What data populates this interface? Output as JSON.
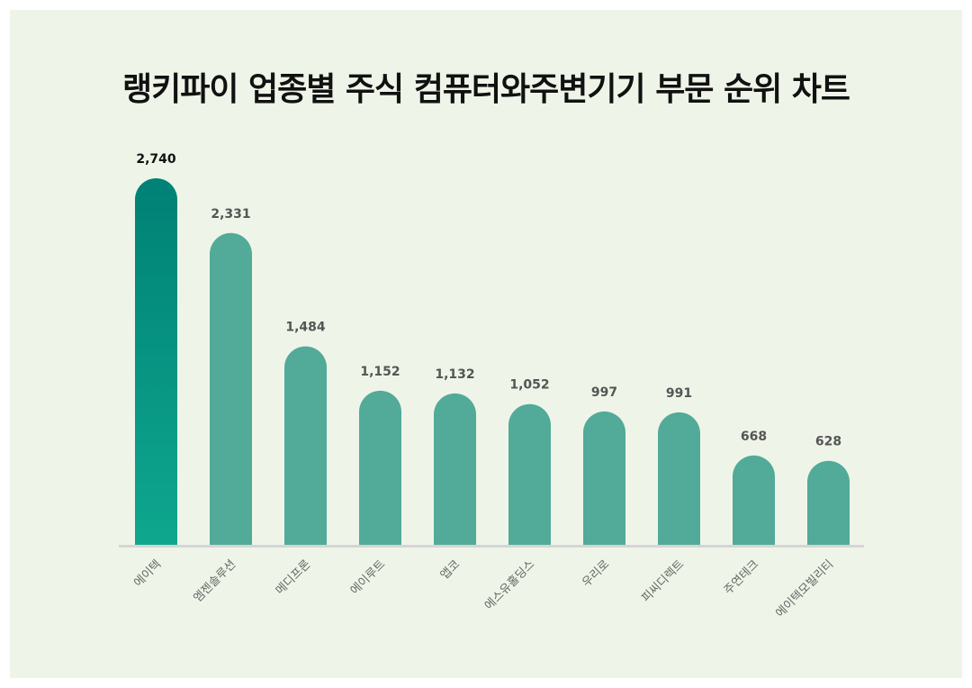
{
  "title": "랭키파이 업종별 주식 컴퓨터와주변기기 부문 순위 차트",
  "colors": {
    "background": "#eef5e8",
    "highlight_top": "#008175",
    "highlight_bottom": "#0ea78e",
    "bar": "#52aa99",
    "baseline": "#d5d5d5",
    "value_top": "#111111",
    "value": "#555555",
    "category": "#666666"
  },
  "chart_data": {
    "type": "bar",
    "title": "랭키파이 업종별 주식 컴퓨터와주변기기 부문 순위 차트",
    "categories": [
      "에이텍",
      "엠젠솔루션",
      "메디프론",
      "에이루트",
      "앱코",
      "에스유홀딩스",
      "우리로",
      "피씨디렉트",
      "주연테크",
      "에이텍모빌리티"
    ],
    "values": [
      2740,
      2331,
      1484,
      1152,
      1132,
      1052,
      997,
      991,
      668,
      628
    ],
    "value_labels": [
      "2,740",
      "2,331",
      "1,484",
      "1,152",
      "1,132",
      "1,052",
      "997",
      "991",
      "668",
      "628"
    ],
    "xlabel": "",
    "ylabel": "",
    "ylim": [
      0,
      2740
    ],
    "grid": false,
    "legend": "none"
  }
}
